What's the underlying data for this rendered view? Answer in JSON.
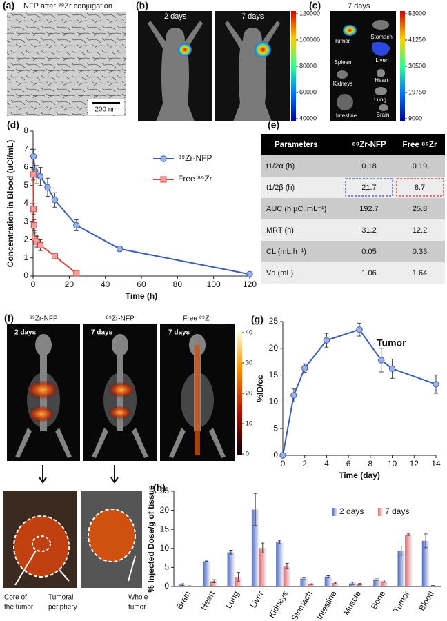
{
  "panel_a": {
    "label": "(a)",
    "title": "NFP after ⁸⁹Zr conjugation",
    "scale_bar": "200 nm"
  },
  "panel_b": {
    "label": "(b)",
    "images": [
      "2 days",
      "7 days"
    ],
    "colorbar": [
      120000,
      100000,
      80000,
      60000,
      40000
    ]
  },
  "panel_c": {
    "label": "(c)",
    "title": "7 days",
    "organs": [
      "Tumor",
      "Stomach",
      "Spleen",
      "Liver",
      "Kidneys",
      "Heart",
      "Lung",
      "Intestine",
      "Brain"
    ],
    "colorbar": [
      52000,
      41250,
      30500,
      19750,
      9000
    ]
  },
  "panel_e": {
    "label": "(e)",
    "table": {
      "header": [
        "Parameters",
        "⁸⁹Zr-NFP",
        "Free ⁸⁹Zr"
      ],
      "rows": [
        [
          "t1/2α (h)",
          0.18,
          0.19
        ],
        [
          "t1/2β (h)",
          21.7,
          8.7
        ],
        [
          "AUC (h.µCi.mL⁻¹)",
          192.7,
          25.8
        ],
        [
          "MRT (h)",
          31.2,
          12.2
        ],
        [
          "CL (mL.h⁻¹)",
          0.05,
          0.33
        ],
        [
          "Vd (mL)",
          1.06,
          1.64
        ]
      ]
    }
  },
  "panel_f": {
    "label": "(f)",
    "columns": [
      "⁸⁹Zr-NFP",
      "⁸⁹Zr-NFP",
      "Free ⁸⁹Zr"
    ],
    "times": [
      "2 days",
      "7 days",
      "7 days"
    ],
    "colorbar_title": "%ID/cc",
    "colorbar": [
      40,
      30,
      20,
      10,
      0
    ],
    "annotations": [
      [
        "Core of",
        "the tumor"
      ],
      [
        "Tumoral",
        "periphery"
      ],
      [
        "Whole",
        "tumor"
      ]
    ]
  },
  "chart_data": [
    {
      "type": "line",
      "panel": "(d)",
      "xlabel": "Time (h)",
      "ylabel": "Concentration in Blood (uCi/mL)",
      "xlim": [
        0,
        120
      ],
      "xticks": [
        0,
        20,
        40,
        60,
        80,
        100,
        120
      ],
      "ylim": [
        0,
        8
      ],
      "yticks": [
        0,
        1,
        2,
        3,
        4,
        5,
        6,
        7,
        8
      ],
      "series": [
        {
          "name": "⁸⁹Zr-NFP",
          "color": "#3a5fb5",
          "marker": "circle",
          "x": [
            0.25,
            1,
            2,
            4,
            8,
            12,
            24,
            48,
            120
          ],
          "values": [
            6.6,
            5.8,
            5.6,
            5.5,
            4.9,
            4.2,
            2.8,
            1.5,
            0.1
          ],
          "errors": [
            0.4,
            0.3,
            0.5,
            0.5,
            0.5,
            0.4,
            0.3,
            0.15,
            0.05
          ]
        },
        {
          "name": "Free ⁸⁹Zr",
          "color": "#d9443a",
          "marker": "square",
          "x": [
            0.08,
            0.25,
            0.5,
            1,
            2,
            4,
            12,
            24
          ],
          "values": [
            5.6,
            3.7,
            2.8,
            2.1,
            1.9,
            1.7,
            1.1,
            0.15
          ],
          "errors": [
            0.3,
            0.3,
            0.3,
            0.3,
            0.3,
            0.3,
            0.1,
            0.1
          ]
        }
      ]
    },
    {
      "type": "line",
      "panel": "(g)",
      "annotation": "Tumor",
      "xlabel": "Time (day)",
      "ylabel": "%ID/cc",
      "x": [
        0,
        1,
        2,
        4,
        7,
        9,
        10,
        14
      ],
      "xlim": [
        0,
        14
      ],
      "xticks": [
        0,
        2,
        4,
        6,
        8,
        10,
        12,
        14
      ],
      "ylim": [
        0,
        25
      ],
      "yticks": [
        0,
        5,
        10,
        15,
        20,
        25
      ],
      "series": [
        {
          "color": "#3a5fb5",
          "marker": "circle",
          "values": [
            0,
            11.2,
            16.3,
            21.5,
            23.5,
            17.8,
            16.2,
            13.3
          ],
          "errors": [
            0,
            1.2,
            0.8,
            1.3,
            1.2,
            2.2,
            1.8,
            1.7
          ]
        }
      ]
    },
    {
      "type": "bar",
      "panel": "(h)",
      "ylabel": "% Injected Dose/g of tissue",
      "categories": [
        "Brain",
        "Heart",
        "Lung",
        "Liver",
        "Kidneys",
        "Stomach",
        "Intestine",
        "Muscle",
        "Bone",
        "Tumor",
        "Blood"
      ],
      "ylim": [
        0,
        25
      ],
      "yticks": [
        0,
        5,
        10,
        15,
        20,
        25
      ],
      "series": [
        {
          "name": "2 days",
          "color": "#4f6cc4",
          "values": [
            0.5,
            6.6,
            9.0,
            20.2,
            11.6,
            2.1,
            2.6,
            0.8,
            1.9,
            9.4,
            12.0
          ],
          "errors": [
            0.2,
            0.1,
            0.5,
            4.2,
            0.4,
            0.3,
            0.2,
            0.3,
            0.3,
            1.2,
            1.8
          ]
        },
        {
          "name": "7 days",
          "color": "#e06a6a",
          "values": [
            0.1,
            1.4,
            2.5,
            10.1,
            5.4,
            0.6,
            0.9,
            0.6,
            1.4,
            13.6,
            0.2
          ],
          "errors": [
            0.05,
            0.4,
            1.2,
            1.3,
            0.7,
            0.1,
            0.2,
            0.2,
            0.3,
            0.2,
            0.05
          ]
        }
      ]
    }
  ]
}
